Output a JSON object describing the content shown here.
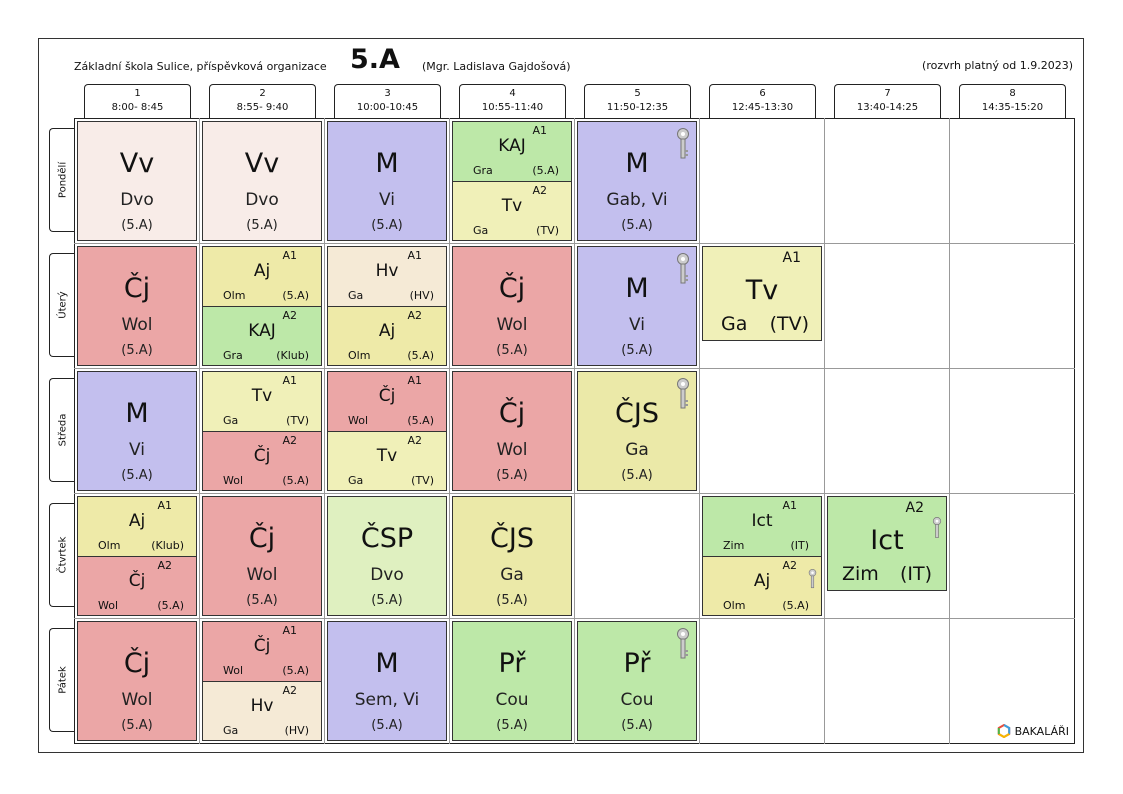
{
  "header": {
    "school": "Základní škola Sulice, příspěvková organizace",
    "class_name": "5.A",
    "teacher": "(Mgr. Ladislava Gajdošová)",
    "valid_from": "(rozvrh platný od 1.9.2023)"
  },
  "periods": [
    {
      "num": "1",
      "time": "8:00- 8:45"
    },
    {
      "num": "2",
      "time": "8:55- 9:40"
    },
    {
      "num": "3",
      "time": "10:00-10:45"
    },
    {
      "num": "4",
      "time": "10:55-11:40"
    },
    {
      "num": "5",
      "time": "11:50-12:35"
    },
    {
      "num": "6",
      "time": "12:45-13:30"
    },
    {
      "num": "7",
      "time": "13:40-14:25"
    },
    {
      "num": "8",
      "time": "14:35-15:20"
    }
  ],
  "days": [
    "Pondělí",
    "Úterý",
    "Středa",
    "Čtvrtek",
    "Pátek"
  ],
  "colors": {
    "vv": "#f8ece8",
    "m": "#c3bfee",
    "cj": "#eba6a6",
    "green": "#bde8a8",
    "yellow": "#f0f0b8",
    "hv": "#f5ead6",
    "cjs": "#ebe9a8",
    "csp": "#dff0c0",
    "aj": "#eeeaa8"
  },
  "lessons": {
    "mon1": {
      "subject": "Vv",
      "teacher": "Dvo",
      "room": "(5.A)"
    },
    "mon2": {
      "subject": "Vv",
      "teacher": "Dvo",
      "room": "(5.A)"
    },
    "mon3": {
      "subject": "M",
      "teacher": "Vi",
      "room": "(5.A)"
    },
    "mon4a": {
      "group": "A1",
      "subject": "KAJ",
      "teacher": "Gra",
      "room": "(5.A)"
    },
    "mon4b": {
      "group": "A2",
      "subject": "Tv",
      "teacher": "Ga",
      "room": "(TV)"
    },
    "mon5": {
      "subject": "M",
      "teacher": "Gab, Vi",
      "room": "(5.A)"
    },
    "tue1": {
      "subject": "Čj",
      "teacher": "Wol",
      "room": "(5.A)"
    },
    "tue2a": {
      "group": "A1",
      "subject": "Aj",
      "teacher": "Olm",
      "room": "(5.A)"
    },
    "tue2b": {
      "group": "A2",
      "subject": "KAJ",
      "teacher": "Gra",
      "room": "(Klub)"
    },
    "tue3a": {
      "group": "A1",
      "subject": "Hv",
      "teacher": "Ga",
      "room": "(HV)"
    },
    "tue3b": {
      "group": "A2",
      "subject": "Aj",
      "teacher": "Olm",
      "room": "(5.A)"
    },
    "tue4": {
      "subject": "Čj",
      "teacher": "Wol",
      "room": "(5.A)"
    },
    "tue5": {
      "subject": "M",
      "teacher": "Vi",
      "room": "(5.A)"
    },
    "tue6": {
      "group": "A1",
      "subject": "Tv",
      "teacher": "Ga",
      "room": "(TV)"
    },
    "wed1": {
      "subject": "M",
      "teacher": "Vi",
      "room": "(5.A)"
    },
    "wed2a": {
      "group": "A1",
      "subject": "Tv",
      "teacher": "Ga",
      "room": "(TV)"
    },
    "wed2b": {
      "group": "A2",
      "subject": "Čj",
      "teacher": "Wol",
      "room": "(5.A)"
    },
    "wed3a": {
      "group": "A1",
      "subject": "Čj",
      "teacher": "Wol",
      "room": "(5.A)"
    },
    "wed3b": {
      "group": "A2",
      "subject": "Tv",
      "teacher": "Ga",
      "room": "(TV)"
    },
    "wed4": {
      "subject": "Čj",
      "teacher": "Wol",
      "room": "(5.A)"
    },
    "wed5": {
      "subject": "ČJS",
      "teacher": "Ga",
      "room": "(5.A)"
    },
    "thu1a": {
      "group": "A1",
      "subject": "Aj",
      "teacher": "Olm",
      "room": "(Klub)"
    },
    "thu1b": {
      "group": "A2",
      "subject": "Čj",
      "teacher": "Wol",
      "room": "(5.A)"
    },
    "thu2": {
      "subject": "Čj",
      "teacher": "Wol",
      "room": "(5.A)"
    },
    "thu3": {
      "subject": "ČSP",
      "teacher": "Dvo",
      "room": "(5.A)"
    },
    "thu4": {
      "subject": "ČJS",
      "teacher": "Ga",
      "room": "(5.A)"
    },
    "thu6a": {
      "group": "A1",
      "subject": "Ict",
      "teacher": "Zim",
      "room": "(IT)"
    },
    "thu6b": {
      "group": "A2",
      "subject": "Aj",
      "teacher": "Olm",
      "room": "(5.A)"
    },
    "thu7": {
      "group": "A2",
      "subject": "Ict",
      "teacher": "Zim",
      "room": "(IT)"
    },
    "fri1": {
      "subject": "Čj",
      "teacher": "Wol",
      "room": "(5.A)"
    },
    "fri2a": {
      "group": "A1",
      "subject": "Čj",
      "teacher": "Wol",
      "room": "(5.A)"
    },
    "fri2b": {
      "group": "A2",
      "subject": "Hv",
      "teacher": "Ga",
      "room": "(HV)"
    },
    "fri3": {
      "subject": "M",
      "teacher": "Sem, Vi",
      "room": "(5.A)"
    },
    "fri4": {
      "subject": "Př",
      "teacher": "Cou",
      "room": "(5.A)"
    },
    "fri5": {
      "subject": "Př",
      "teacher": "Cou",
      "room": "(5.A)"
    }
  },
  "icons": {
    "key": "key-icon",
    "logo": "bakalari-logo-icon"
  },
  "logo_text": "BAKALÁŘI"
}
